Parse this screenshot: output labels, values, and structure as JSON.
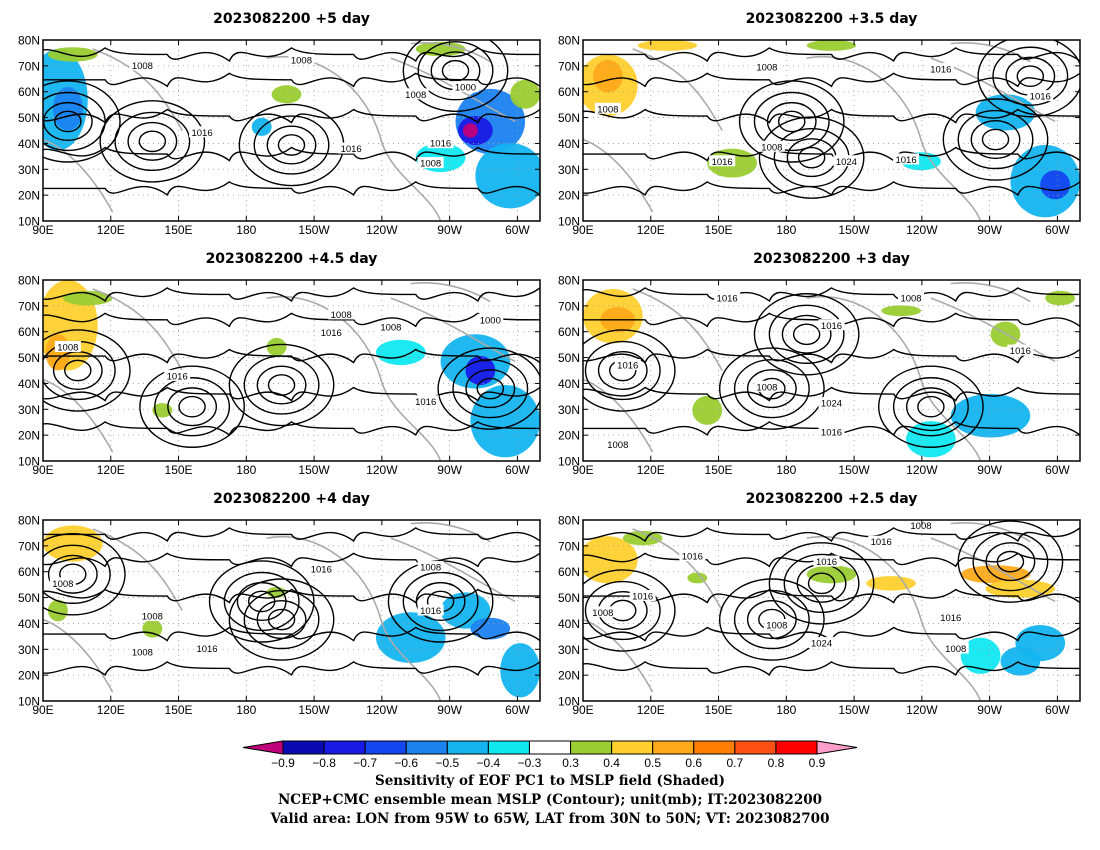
{
  "panels": [
    {
      "title": "2023082200  +5  day",
      "contour_labels": [
        "1008",
        "1008",
        "1008",
        "1000",
        "1016",
        "1016",
        "1016",
        "1008"
      ]
    },
    {
      "title": "2023082200  +3.5  day",
      "contour_labels": [
        "1008",
        "1008",
        "1016",
        "1016",
        "1008",
        "1024",
        "1016",
        "1016"
      ]
    },
    {
      "title": "2023082200  +4.5  day",
      "contour_labels": [
        "1008",
        "1008",
        "1016",
        "1016",
        "1008",
        "1000",
        "1016"
      ]
    },
    {
      "title": "2023082200  +3  day",
      "contour_labels": [
        "1016",
        "1008",
        "1016",
        "1016",
        "1008",
        "1024",
        "1016",
        "1016",
        "1008"
      ]
    },
    {
      "title": "2023082200  +4  day",
      "contour_labels": [
        "1008",
        "1008",
        "1016",
        "1016",
        "1008",
        "1016",
        "1008"
      ]
    },
    {
      "title": "2023082200  +2.5  day",
      "contour_labels": [
        "1008",
        "1016",
        "1016",
        "1016",
        "1008",
        "1008",
        "1024",
        "1016",
        "1016",
        "1008"
      ]
    }
  ],
  "map": {
    "lon_labels": [
      "90E",
      "120E",
      "150E",
      "180",
      "150W",
      "120W",
      "90W",
      "60W"
    ],
    "lat_labels": [
      "10N",
      "20N",
      "30N",
      "40N",
      "50N",
      "60N",
      "70N",
      "80N"
    ]
  },
  "colorbar": {
    "values": [
      "−0.9",
      "−0.8",
      "−0.7",
      "−0.6",
      "−0.5",
      "−0.4",
      "−0.3",
      "0.3",
      "0.4",
      "0.5",
      "0.6",
      "0.7",
      "0.8",
      "0.9"
    ],
    "colors": [
      "#c0007a",
      "#0a0ab4",
      "#1a1ae6",
      "#1446f0",
      "#1b82f0",
      "#13b4f0",
      "#10e8f0",
      "#ffffff",
      "#9acd32",
      "#ffd02e",
      "#ffaa1a",
      "#ff7d00",
      "#ff5014",
      "#ff0000",
      "#ff9ec8"
    ]
  },
  "captions": [
    "Sensitivity of EOF PC1 to MSLP field (Shaded)",
    "NCEP+CMC ensemble mean MSLP (Contour); unit(mb); IT:2023082200",
    "Valid area: LON from 95W to 65W, LAT from 30N to 50N; VT: 2023082700"
  ]
}
